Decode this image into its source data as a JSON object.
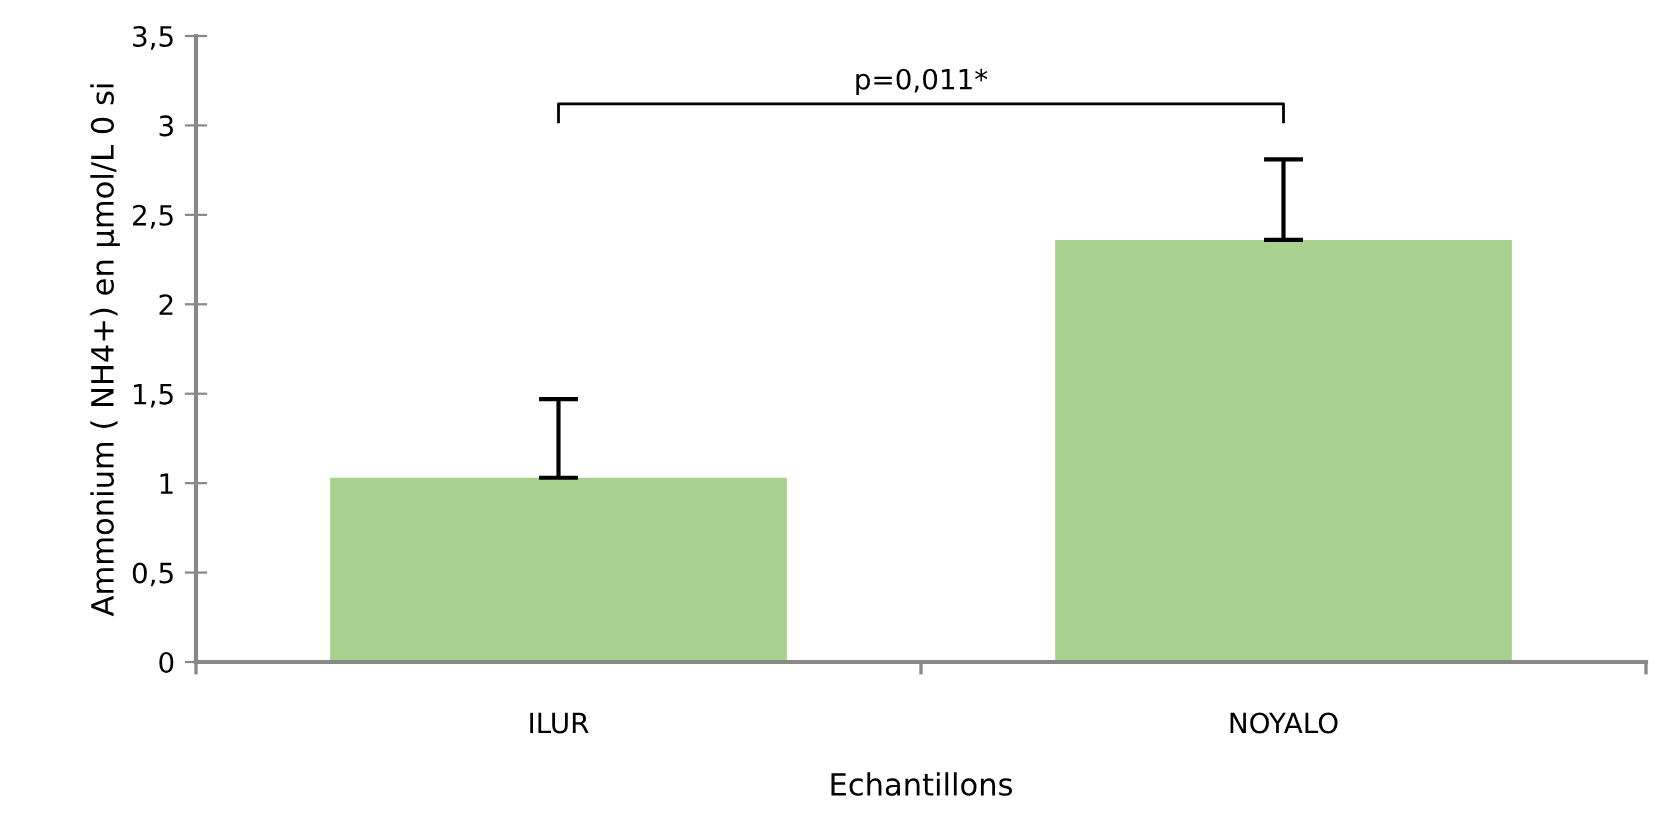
{
  "chart_data": {
    "type": "bar",
    "xlabel": "Echantillons",
    "ylabel": "Ammonium ( NH4+) en µmol/L 0 si",
    "categories": [
      "ILUR",
      "NOYALO"
    ],
    "values": [
      1.03,
      2.36
    ],
    "color": "#a9d18e",
    "errors": [
      [
        1.03,
        1.47
      ],
      [
        2.36,
        2.81
      ]
    ],
    "ylim": [
      0,
      3.5
    ],
    "yticks": [
      0,
      {
        "value": 0.5,
        "label": "0,5"
      },
      1,
      {
        "value": 1.5,
        "label": "1,5"
      },
      2,
      {
        "value": 2.5,
        "label": "2,5"
      },
      3,
      {
        "value": 3.5,
        "label": "3,5"
      }
    ],
    "annotations": [
      "p=0,011*"
    ],
    "grid": false,
    "legend": false
  }
}
